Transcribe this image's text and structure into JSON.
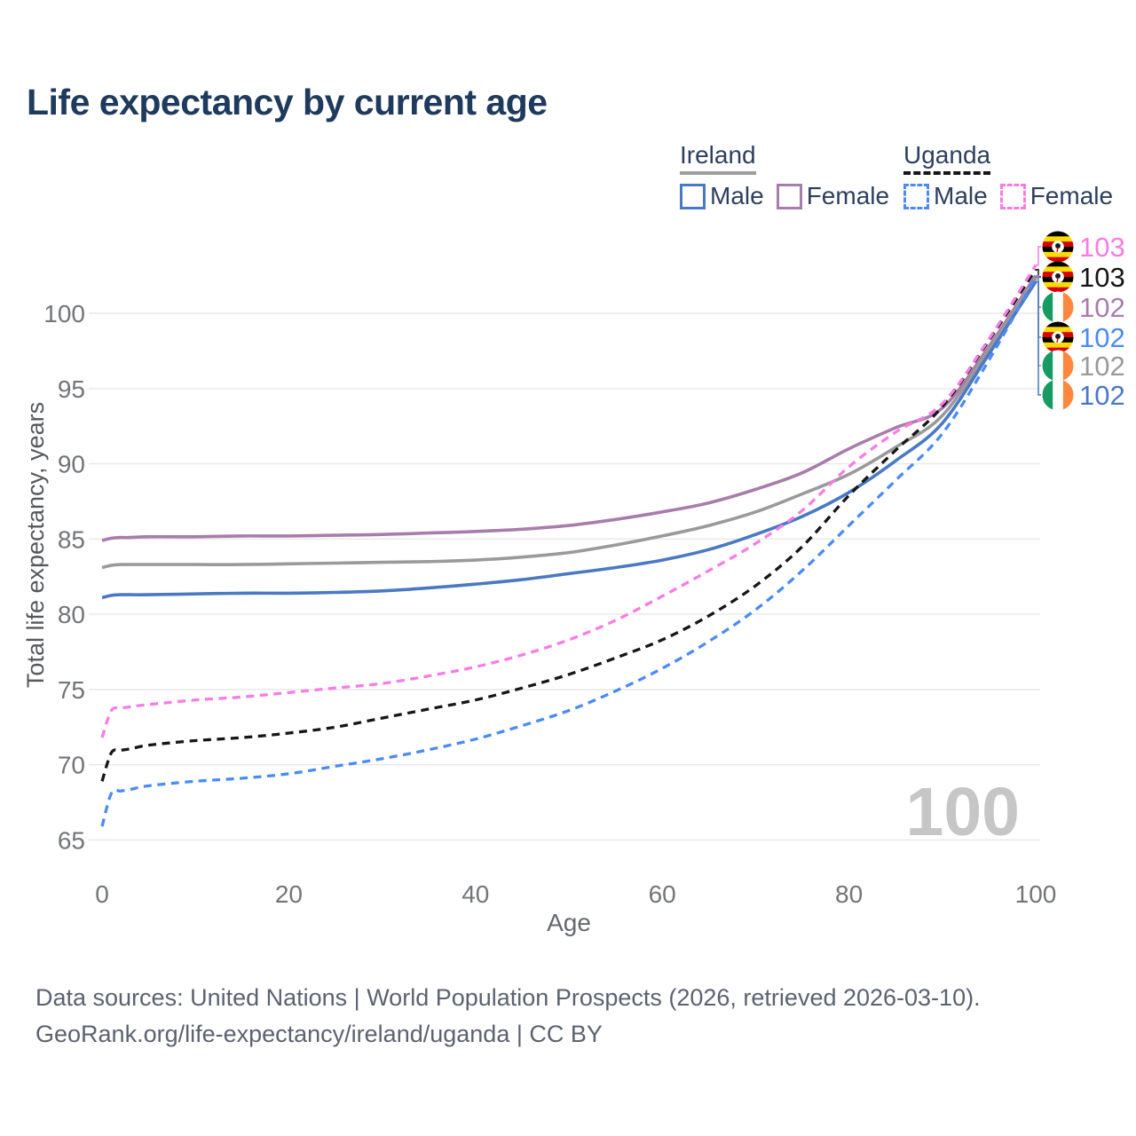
{
  "title": "Life expectancy by current age",
  "legend": {
    "groups": [
      {
        "country": "Ireland",
        "underline_color": "#9e9e9e",
        "underline_style": "solid",
        "items": [
          {
            "label": "Male",
            "color": "#4a79c4",
            "style": "solid"
          },
          {
            "label": "Female",
            "color": "#a87cab",
            "style": "solid"
          }
        ]
      },
      {
        "country": "Uganda",
        "underline_color": "#161616",
        "underline_style": "dashed",
        "items": [
          {
            "label": "Male",
            "color": "#4b8bf5",
            "style": "dashed"
          },
          {
            "label": "Female",
            "color": "#f97ce4",
            "style": "dashed"
          }
        ]
      }
    ]
  },
  "chart_data": {
    "type": "line",
    "title": "Life expectancy by current age",
    "xlabel": "Age",
    "ylabel": "Total life expectancy, years",
    "xlim": [
      0,
      100
    ],
    "ylim": [
      65,
      103.5
    ],
    "x_ticks": [
      0,
      20,
      40,
      60,
      80,
      100
    ],
    "y_ticks": [
      65,
      70,
      75,
      80,
      85,
      90,
      95,
      100
    ],
    "grid": "horizontal",
    "legend_position": "top-right",
    "watermark": "100",
    "ages": [
      0,
      1,
      2,
      3,
      5,
      10,
      15,
      20,
      25,
      30,
      35,
      40,
      45,
      50,
      55,
      60,
      65,
      70,
      75,
      80,
      85,
      90,
      95,
      100
    ],
    "series": [
      {
        "name": "Ireland Female",
        "country": "ireland",
        "sex": "female",
        "color": "#a87cab",
        "dashed": false,
        "width": 3.6,
        "values": [
          84.9,
          85.05,
          85.1,
          85.1,
          85.15,
          85.15,
          85.2,
          85.2,
          85.25,
          85.3,
          85.4,
          85.5,
          85.65,
          85.9,
          86.3,
          86.8,
          87.4,
          88.3,
          89.4,
          91.0,
          92.4,
          93.7,
          97.8,
          102.5
        ]
      },
      {
        "name": "Ireland Total",
        "country": "ireland",
        "sex": "total",
        "color": "#9a9a9a",
        "dashed": false,
        "width": 3.6,
        "values": [
          83.1,
          83.25,
          83.3,
          83.3,
          83.3,
          83.3,
          83.3,
          83.35,
          83.4,
          83.45,
          83.5,
          83.6,
          83.8,
          84.1,
          84.6,
          85.2,
          85.9,
          86.8,
          88.0,
          89.3,
          91.1,
          93.2,
          97.6,
          102.3
        ]
      },
      {
        "name": "Ireland Male",
        "country": "ireland",
        "sex": "male",
        "color": "#4a79c4",
        "dashed": false,
        "width": 3.6,
        "values": [
          81.1,
          81.25,
          81.3,
          81.3,
          81.3,
          81.35,
          81.4,
          81.4,
          81.45,
          81.55,
          81.75,
          82.0,
          82.3,
          82.7,
          83.1,
          83.6,
          84.3,
          85.3,
          86.5,
          88.1,
          90.2,
          92.7,
          97.3,
          102.1
        ]
      },
      {
        "name": "Uganda Male",
        "country": "uganda",
        "sex": "male",
        "color": "#4b8bf5",
        "dashed": true,
        "width": 3.3,
        "values": [
          65.9,
          68.1,
          68.25,
          68.35,
          68.6,
          68.9,
          69.1,
          69.4,
          69.9,
          70.4,
          71.0,
          71.7,
          72.6,
          73.6,
          74.9,
          76.4,
          78.2,
          80.3,
          82.9,
          85.9,
          88.9,
          92.0,
          96.9,
          102.4
        ]
      },
      {
        "name": "Uganda Total",
        "country": "uganda",
        "sex": "total",
        "color": "#161616",
        "dashed": true,
        "width": 3.3,
        "values": [
          68.9,
          70.8,
          70.95,
          71.05,
          71.3,
          71.6,
          71.8,
          72.1,
          72.5,
          73.1,
          73.7,
          74.3,
          75.1,
          76.0,
          77.1,
          78.3,
          79.9,
          81.9,
          84.5,
          87.9,
          90.9,
          93.8,
          98.2,
          102.9
        ]
      },
      {
        "name": "Uganda Female",
        "country": "uganda",
        "sex": "female",
        "color": "#f97ce4",
        "dashed": true,
        "width": 3.3,
        "values": [
          71.8,
          73.6,
          73.75,
          73.85,
          74.0,
          74.3,
          74.5,
          74.8,
          75.1,
          75.4,
          75.9,
          76.5,
          77.3,
          78.3,
          79.6,
          81.2,
          82.9,
          84.7,
          86.9,
          89.8,
          92.1,
          94.0,
          98.3,
          103.2
        ]
      }
    ],
    "end_labels": [
      {
        "series_index": 5,
        "value": "103",
        "flag": "uganda"
      },
      {
        "series_index": 4,
        "value": "103",
        "flag": "uganda"
      },
      {
        "series_index": 0,
        "value": "102",
        "flag": "ireland"
      },
      {
        "series_index": 3,
        "value": "102",
        "flag": "uganda"
      },
      {
        "series_index": 1,
        "value": "102",
        "flag": "ireland"
      },
      {
        "series_index": 2,
        "value": "102",
        "flag": "ireland"
      }
    ],
    "flags": {
      "uganda": {
        "stripes": [
          "#000000",
          "#fcdc04",
          "#d90000",
          "#000000",
          "#fcdc04",
          "#d90000"
        ],
        "orientation": "horizontal"
      },
      "ireland": {
        "stripes": [
          "#169b62",
          "#ffffff",
          "#ff883e"
        ],
        "orientation": "vertical"
      }
    }
  },
  "footer": {
    "line1": "Data sources: United Nations | World Population Prospects (2026, retrieved 2026-03-10).",
    "line2": "GeoRank.org/life-expectancy/ireland/uganda | CC BY"
  }
}
